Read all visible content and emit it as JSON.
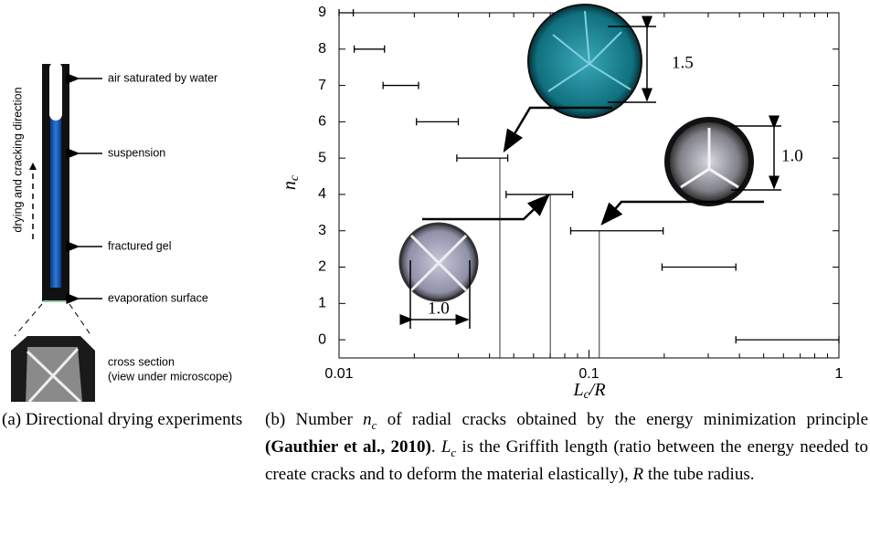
{
  "panel_a": {
    "labels": [
      "air saturated by water",
      "suspension",
      "fractured gel",
      "evaporation surface",
      "cross section",
      "(view under microscope)"
    ],
    "direction": "drying and cracking direction"
  },
  "chart_data": {
    "type": "interval",
    "values": [
      9,
      8,
      7,
      6,
      5,
      4,
      3,
      2,
      0
    ],
    "x_start": [
      0.01,
      0.0115,
      0.015,
      0.0204,
      0.0296,
      0.0466,
      0.0845,
      0.196,
      0.387
    ],
    "x_end": [
      0.0114,
      0.0152,
      0.0208,
      0.03,
      0.0473,
      0.086,
      0.198,
      0.387,
      1
    ],
    "color": "#000000",
    "guides": {
      "x": [
        0.044,
        0.07,
        0.11
      ],
      "values": [
        5,
        4,
        3
      ]
    },
    "xlim": [
      0.01,
      1
    ],
    "ylim": [
      -0.5,
      9
    ],
    "log_x": true,
    "xticks": [
      0.01,
      0.1,
      1
    ],
    "xminorticks": [
      0.02,
      0.03,
      0.04,
      0.05,
      0.06,
      0.07,
      0.08,
      0.09,
      0.2,
      0.3,
      0.4,
      0.5,
      0.6,
      0.7,
      0.8,
      0.9
    ],
    "yticks": [
      0,
      1,
      2,
      3,
      4,
      5,
      6,
      7,
      8,
      9
    ],
    "xlabel": {
      "main": "L",
      "sub": "c",
      "rest": "/R"
    },
    "ylabel": {
      "main": "n",
      "sub": "c"
    },
    "annotations": [
      "1.5",
      "1.0",
      "1.0"
    ]
  },
  "captions": {
    "a": "(a) Directional drying experiments",
    "b": [
      "(b) Number ",
      "n",
      "c",
      " of radial cracks obtained by the energy minimization principle ",
      "(Gauthier et al., 2010)",
      ". ",
      "L",
      "c",
      " is the Griffith length (ratio between the energy needed to create cracks and to deform the material elastically), ",
      "R",
      " the tube radius."
    ]
  }
}
